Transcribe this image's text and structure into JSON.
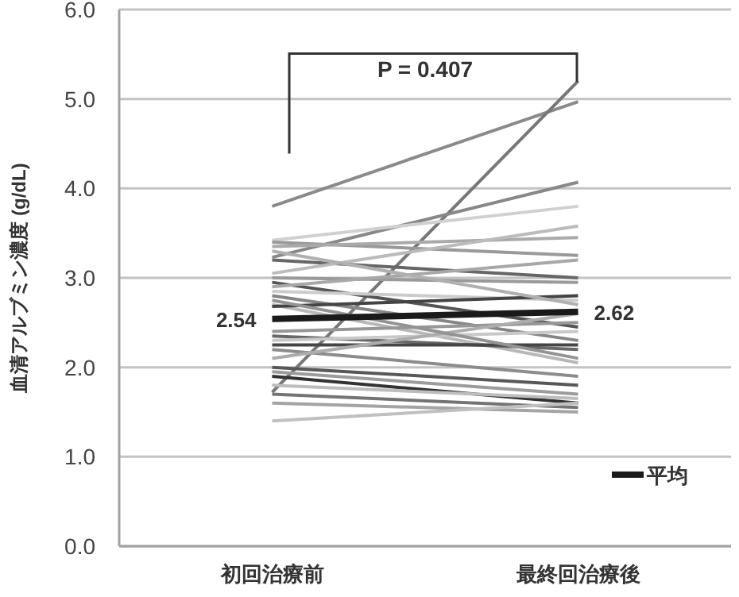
{
  "chart_data": {
    "type": "line",
    "ylabel": "血清アルブミン濃度 (g/dL)",
    "categories": [
      "初回治療前",
      "最終回治療後"
    ],
    "ylim": [
      0,
      6
    ],
    "yticks": [
      {
        "value": 0,
        "label": "0.0"
      },
      {
        "value": 1,
        "label": "1.0"
      },
      {
        "value": 2,
        "label": "2.0"
      },
      {
        "value": 3,
        "label": "3.0"
      },
      {
        "value": 4,
        "label": "4.0"
      },
      {
        "value": 5,
        "label": "5.0"
      },
      {
        "value": 6,
        "label": "6.0"
      }
    ],
    "grid": "y",
    "legend": "bottom right",
    "marker": "none",
    "annotations": [
      "P = 0.407"
    ],
    "series": [
      {
        "color": "#8a8a8a",
        "values": [
          3.8,
          4.97
        ]
      },
      {
        "color": "#777777",
        "values": [
          1.72,
          5.2
        ]
      },
      {
        "color": "#888888",
        "values": [
          3.23,
          4.07
        ]
      },
      {
        "color": "#d0d0d0",
        "values": [
          3.42,
          3.8
        ]
      },
      {
        "color": "#999999",
        "values": [
          3.4,
          3.25
        ]
      },
      {
        "color": "#aaaaaa",
        "values": [
          3.35,
          3.45
        ]
      },
      {
        "color": "#666666",
        "values": [
          3.2,
          3.0
        ]
      },
      {
        "color": "#bbbbbb",
        "values": [
          3.05,
          3.58
        ]
      },
      {
        "color": "#9a9a9a",
        "values": [
          3.0,
          2.95
        ]
      },
      {
        "color": "#555555",
        "values": [
          2.95,
          2.45
        ]
      },
      {
        "color": "#a8a8a8",
        "values": [
          2.9,
          3.2
        ]
      },
      {
        "color": "#cccccc",
        "values": [
          2.85,
          2.75
        ]
      },
      {
        "color": "#868686",
        "values": [
          2.8,
          2.3
        ]
      },
      {
        "color": "#b8b8b8",
        "values": [
          2.7,
          2.05
        ]
      },
      {
        "color": "#444444",
        "values": [
          2.68,
          2.8
        ]
      },
      {
        "color": "#979797",
        "values": [
          2.4,
          2.5
        ]
      },
      {
        "color": "#686868",
        "values": [
          2.35,
          2.2
        ]
      },
      {
        "color": "#c8c8c8",
        "values": [
          2.3,
          2.4
        ]
      },
      {
        "color": "#464646",
        "values": [
          2.25,
          2.25
        ]
      },
      {
        "color": "#8c8c8c",
        "values": [
          2.2,
          1.9
        ]
      },
      {
        "color": "#acacac",
        "values": [
          2.1,
          2.6
        ]
      },
      {
        "color": "#585858",
        "values": [
          2.0,
          1.8
        ]
      },
      {
        "color": "#9c9c9c",
        "values": [
          1.95,
          1.7
        ]
      },
      {
        "color": "#333333",
        "values": [
          1.9,
          1.6
        ]
      },
      {
        "color": "#bdbdbd",
        "values": [
          1.8,
          1.65
        ]
      },
      {
        "color": "#747474",
        "values": [
          1.7,
          1.55
        ]
      },
      {
        "color": "#a4a4a4",
        "values": [
          1.6,
          1.5
        ]
      },
      {
        "color": "#c0c0c0",
        "values": [
          1.4,
          1.6
        ]
      },
      {
        "color": "#949494",
        "values": [
          2.75,
          2.1
        ]
      },
      {
        "color": "#b0b0b0",
        "values": [
          3.3,
          2.7
        ]
      },
      {
        "name": "平均",
        "color": "#1a1a1a",
        "values": [
          2.54,
          2.62
        ],
        "value_labels": [
          "2.54",
          "2.62"
        ]
      }
    ]
  }
}
